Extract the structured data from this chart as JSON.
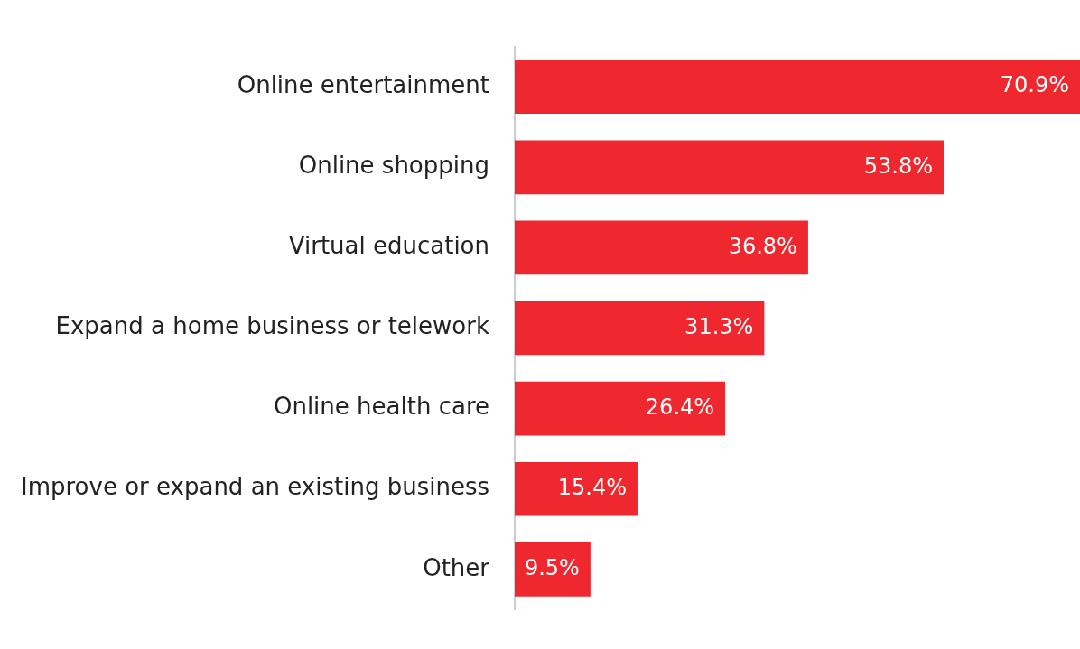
{
  "chart_data": {
    "type": "bar",
    "orientation": "horizontal",
    "categories": [
      "Online entertainment",
      "Online shopping",
      "Virtual education",
      "Expand a home business or telework",
      "Online health care",
      "Improve or expand an existing business",
      "Other"
    ],
    "values": [
      70.9,
      53.8,
      36.8,
      31.3,
      26.4,
      15.4,
      9.5
    ],
    "value_labels": [
      "70.9%",
      "53.8%",
      "36.8%",
      "31.3%",
      "26.4%",
      "15.4%",
      "9.5%"
    ],
    "color": "#ee282e",
    "legend": false
  }
}
